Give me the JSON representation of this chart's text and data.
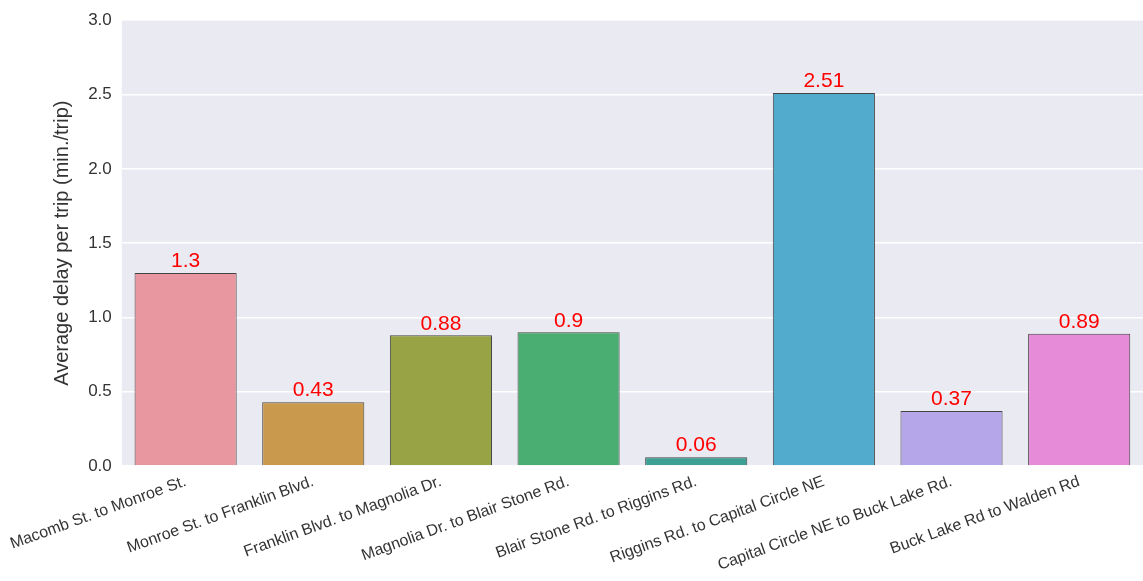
{
  "chart_data": {
    "type": "bar",
    "ylabel": "Average delay per trip (min./trip)",
    "categories": [
      "Macomb St. to Monroe St.",
      "Monroe St. to Franklin Blvd.",
      "Franklin Blvd. to Magnolia Dr.",
      "Magnolia Dr. to Blair Stone Rd.",
      "Blair Stone Rd. to Riggins Rd.",
      "Riggins Rd. to Capital Circle NE",
      "Capital Circle NE to Buck Lake Rd.",
      "Buck Lake Rd to Walden Rd"
    ],
    "values": [
      1.3,
      0.43,
      0.88,
      0.9,
      0.06,
      2.51,
      0.37,
      0.89
    ],
    "colors": [
      "#e8969f",
      "#c99a4e",
      "#98a346",
      "#4aae72",
      "#3e9f95",
      "#52aacd",
      "#b5a6ea",
      "#e68bd8"
    ],
    "ylim": [
      0,
      3
    ],
    "yticks": [
      {
        "value": 0,
        "label": "0.0"
      },
      {
        "value": 0.5,
        "label": "0.5"
      },
      {
        "value": 1,
        "label": "1.0"
      },
      {
        "value": 1.5,
        "label": "1.5"
      },
      {
        "value": 2,
        "label": "2.0"
      },
      {
        "value": 2.5,
        "label": "2.5"
      },
      {
        "value": 3,
        "label": "3.0"
      }
    ],
    "grid": "y",
    "data_labels": true
  }
}
